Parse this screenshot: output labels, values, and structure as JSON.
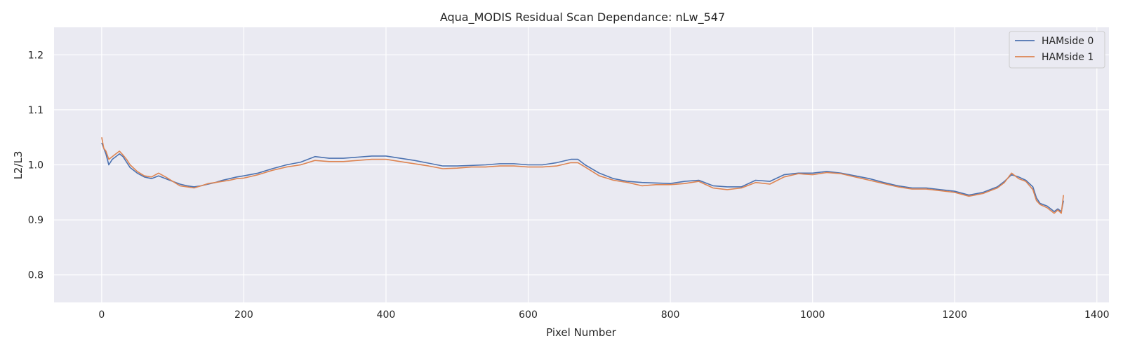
{
  "chart_data": {
    "type": "line",
    "title": "Aqua_MODIS Residual Scan Dependance: nLw_547",
    "xlabel": "Pixel Number",
    "ylabel": "L2/L3",
    "xlim": [
      -67,
      1417
    ],
    "ylim": [
      0.75,
      1.25
    ],
    "xticks": [
      0,
      200,
      400,
      600,
      800,
      1000,
      1200,
      1400
    ],
    "xtick_labels": [
      "0",
      "200",
      "400",
      "600",
      "800",
      "1000",
      "1200",
      "1400"
    ],
    "yticks": [
      0.8,
      0.9,
      1.0,
      1.1,
      1.2
    ],
    "ytick_labels": [
      "0.8",
      "0.9",
      "1.0",
      "1.1",
      "1.2"
    ],
    "grid": true,
    "legend_position": "top-right",
    "series": [
      {
        "name": "HAMside 0",
        "color": "#4c72b0",
        "x": [
          0,
          3,
          6,
          10,
          15,
          20,
          25,
          30,
          35,
          40,
          50,
          60,
          70,
          80,
          90,
          100,
          110,
          120,
          130,
          140,
          150,
          160,
          170,
          180,
          190,
          200,
          220,
          240,
          260,
          280,
          300,
          320,
          340,
          360,
          380,
          400,
          420,
          440,
          460,
          480,
          500,
          520,
          540,
          560,
          580,
          600,
          620,
          640,
          660,
          670,
          680,
          700,
          720,
          740,
          760,
          780,
          800,
          820,
          840,
          860,
          880,
          900,
          920,
          940,
          960,
          980,
          1000,
          1020,
          1040,
          1060,
          1080,
          1100,
          1120,
          1140,
          1160,
          1180,
          1200,
          1220,
          1240,
          1260,
          1270,
          1280,
          1290,
          1300,
          1310,
          1315,
          1320,
          1330,
          1340,
          1345,
          1350,
          1353
        ],
        "y": [
          1.04,
          1.03,
          1.02,
          1.0,
          1.01,
          1.015,
          1.02,
          1.015,
          1.005,
          0.995,
          0.985,
          0.978,
          0.975,
          0.98,
          0.975,
          0.97,
          0.965,
          0.962,
          0.96,
          0.962,
          0.965,
          0.968,
          0.972,
          0.975,
          0.978,
          0.98,
          0.985,
          0.993,
          1.0,
          1.005,
          1.015,
          1.012,
          1.012,
          1.014,
          1.016,
          1.016,
          1.012,
          1.008,
          1.003,
          0.998,
          0.998,
          0.999,
          1.0,
          1.002,
          1.002,
          1.0,
          1.0,
          1.004,
          1.01,
          1.01,
          1.0,
          0.985,
          0.975,
          0.97,
          0.968,
          0.967,
          0.966,
          0.97,
          0.972,
          0.962,
          0.96,
          0.96,
          0.972,
          0.97,
          0.982,
          0.985,
          0.985,
          0.988,
          0.985,
          0.98,
          0.975,
          0.968,
          0.962,
          0.958,
          0.958,
          0.955,
          0.952,
          0.945,
          0.95,
          0.96,
          0.97,
          0.982,
          0.978,
          0.972,
          0.96,
          0.94,
          0.93,
          0.925,
          0.915,
          0.92,
          0.915,
          0.935
        ]
      },
      {
        "name": "HAMside 1",
        "color": "#dd8452",
        "x": [
          0,
          3,
          6,
          10,
          15,
          20,
          25,
          30,
          35,
          40,
          50,
          60,
          70,
          80,
          90,
          100,
          110,
          120,
          130,
          140,
          150,
          160,
          170,
          180,
          190,
          200,
          220,
          240,
          260,
          280,
          300,
          320,
          340,
          360,
          380,
          400,
          420,
          440,
          460,
          480,
          500,
          520,
          540,
          560,
          580,
          600,
          620,
          640,
          660,
          670,
          680,
          700,
          720,
          740,
          760,
          780,
          800,
          820,
          840,
          860,
          880,
          900,
          920,
          940,
          960,
          980,
          1000,
          1020,
          1040,
          1060,
          1080,
          1100,
          1120,
          1140,
          1160,
          1180,
          1200,
          1220,
          1240,
          1260,
          1270,
          1280,
          1290,
          1300,
          1310,
          1315,
          1320,
          1330,
          1340,
          1345,
          1350,
          1353
        ],
        "y": [
          1.05,
          1.03,
          1.025,
          1.01,
          1.015,
          1.02,
          1.025,
          1.018,
          1.01,
          1.0,
          0.988,
          0.98,
          0.978,
          0.985,
          0.978,
          0.97,
          0.962,
          0.96,
          0.958,
          0.962,
          0.966,
          0.968,
          0.97,
          0.972,
          0.975,
          0.976,
          0.982,
          0.99,
          0.996,
          1.0,
          1.008,
          1.006,
          1.006,
          1.008,
          1.01,
          1.01,
          1.006,
          1.002,
          0.998,
          0.993,
          0.994,
          0.996,
          0.996,
          0.998,
          0.998,
          0.996,
          0.996,
          0.998,
          1.004,
          1.004,
          0.996,
          0.98,
          0.972,
          0.968,
          0.962,
          0.964,
          0.964,
          0.966,
          0.97,
          0.958,
          0.955,
          0.958,
          0.968,
          0.965,
          0.978,
          0.984,
          0.982,
          0.986,
          0.984,
          0.978,
          0.972,
          0.966,
          0.96,
          0.956,
          0.956,
          0.953,
          0.95,
          0.943,
          0.948,
          0.958,
          0.968,
          0.985,
          0.975,
          0.97,
          0.955,
          0.935,
          0.928,
          0.922,
          0.912,
          0.918,
          0.912,
          0.945
        ]
      }
    ]
  }
}
